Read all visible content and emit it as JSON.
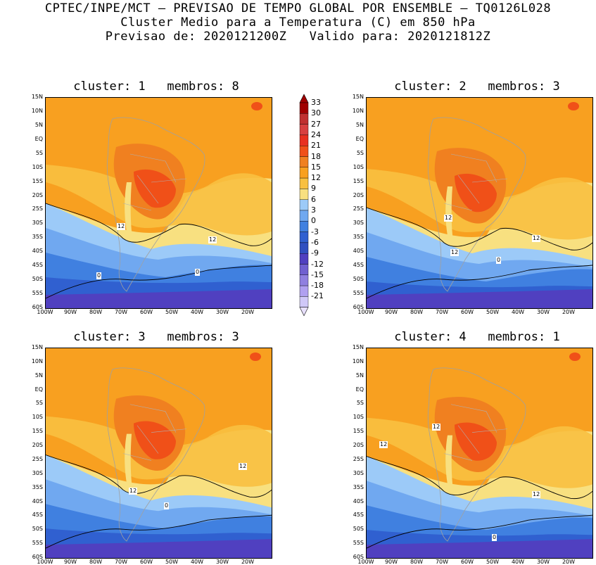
{
  "header": {
    "line1": "CPTEC/INPE/MCT – PREVISAO DE TEMPO GLOBAL POR ENSEMBLE – TQ0126L028",
    "line2": "Cluster Medio para a Temperatura (C) em 850 hPa",
    "line3": "Previsao de: 2020121200Z   Valido para: 2020121812Z"
  },
  "colorbar": {
    "levels": [
      "33",
      "30",
      "27",
      "24",
      "21",
      "18",
      "15",
      "12",
      "9",
      "6",
      "3",
      "0",
      "-3",
      "-6",
      "-9",
      "-12",
      "-15",
      "-18",
      "-21"
    ],
    "colors": [
      "#a00000",
      "#c03030",
      "#d84040",
      "#e83020",
      "#f05018",
      "#f08020",
      "#f8a020",
      "#f8c040",
      "#f8e080",
      "#9ccaf8",
      "#70a8f0",
      "#4080e0",
      "#3060d0",
      "#3050c0",
      "#5040c0",
      "#7060d0",
      "#9080e0",
      "#b0a0f0",
      "#d0c8f8"
    ]
  },
  "lat_ticks": [
    "15N",
    "10N",
    "5N",
    "EQ",
    "5S",
    "10S",
    "15S",
    "20S",
    "25S",
    "30S",
    "35S",
    "40S",
    "45S",
    "50S",
    "55S",
    "60S"
  ],
  "lon_ticks": [
    "100W",
    "90W",
    "80W",
    "70W",
    "60W",
    "50W",
    "40W",
    "30W",
    "20W"
  ],
  "panels": [
    {
      "title": "cluster: 1   membros: 8",
      "labels": [
        {
          "text": "12"
        },
        {
          "text": "12"
        },
        {
          "text": "0"
        },
        {
          "text": "0"
        }
      ]
    },
    {
      "title": "cluster: 2   membros: 3",
      "labels": [
        {
          "text": "12"
        },
        {
          "text": "12"
        },
        {
          "text": "12"
        },
        {
          "text": "0"
        }
      ]
    },
    {
      "title": "cluster: 3   membros: 3",
      "labels": [
        {
          "text": "12"
        },
        {
          "text": "12"
        },
        {
          "text": "0"
        }
      ]
    },
    {
      "title": "cluster: 4   membros: 1",
      "labels": [
        {
          "text": "12"
        },
        {
          "text": "12"
        },
        {
          "text": "12"
        },
        {
          "text": "0"
        }
      ]
    }
  ]
}
